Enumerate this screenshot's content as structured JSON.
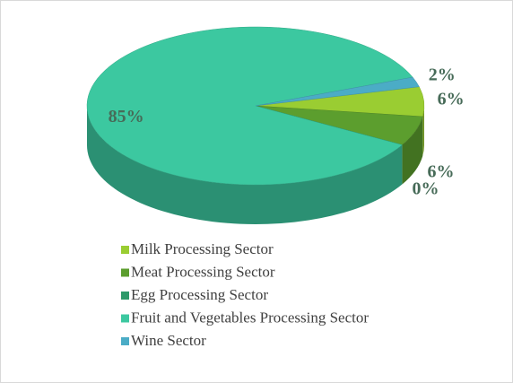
{
  "chart_data": {
    "type": "pie3d",
    "categories": [
      "Milk Processing Sector",
      "Meat Processing Sector",
      "Egg Processing Sector",
      "Fruit and Vegetables Processing Sector",
      "Wine Sector"
    ],
    "values": [
      6,
      6,
      0,
      85,
      2
    ],
    "value_labels": [
      "6%",
      "6%",
      "0%",
      "85%",
      "2%"
    ],
    "colors": [
      "#9acd32",
      "#5c9e2e",
      "#2e9a6a",
      "#3cc8a0",
      "#4bacc6"
    ],
    "legend": "bottom"
  }
}
